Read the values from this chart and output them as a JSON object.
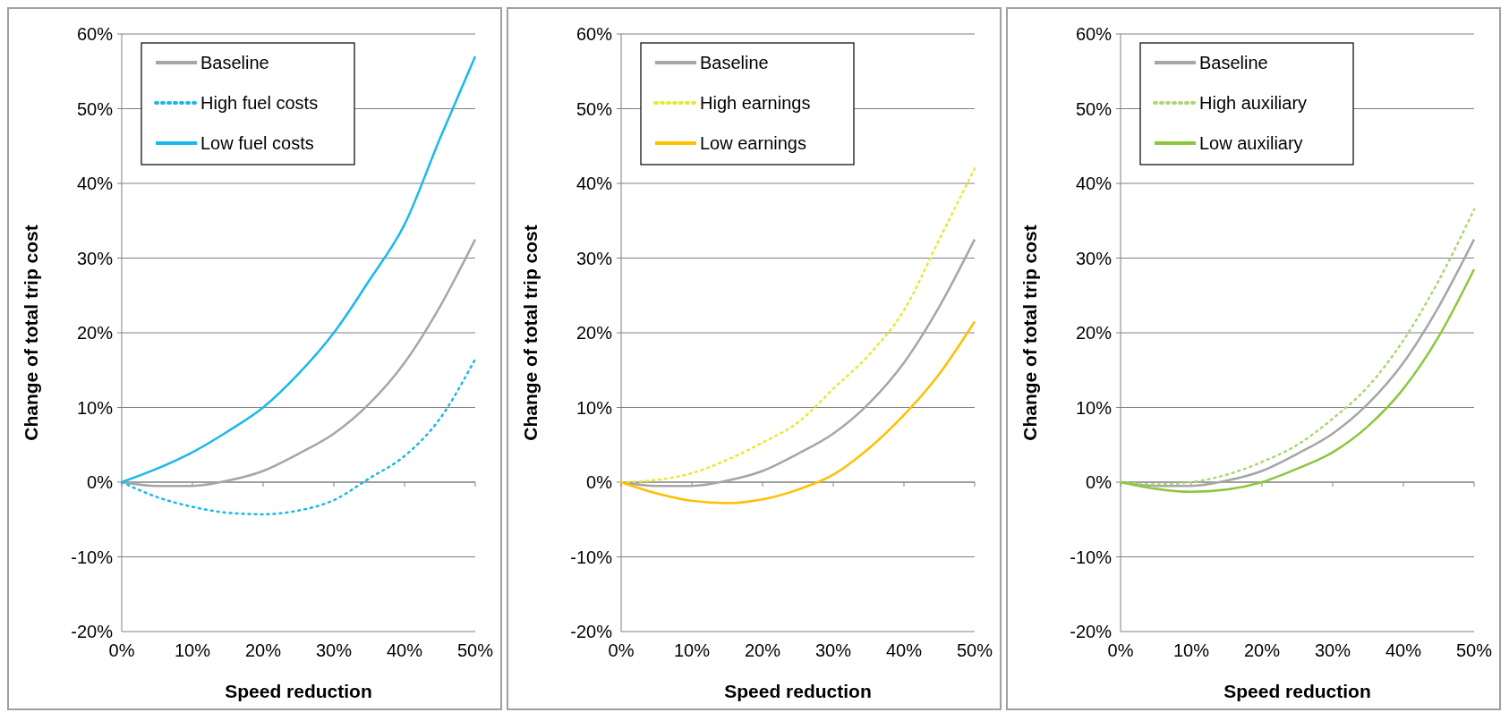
{
  "chart_data": [
    {
      "type": "line",
      "xlabel": "Speed reduction",
      "ylabel": "Change of total trip cost",
      "x": [
        0,
        5,
        10,
        15,
        20,
        25,
        30,
        35,
        40,
        45,
        50
      ],
      "xlim": [
        0,
        50
      ],
      "ylim": [
        -20,
        60
      ],
      "xticks": [
        {
          "value": 0,
          "label": "0%"
        },
        {
          "value": 10,
          "label": "10%"
        },
        {
          "value": 20,
          "label": "20%"
        },
        {
          "value": 30,
          "label": "30%"
        },
        {
          "value": 40,
          "label": "40%"
        },
        {
          "value": 50,
          "label": "50%"
        }
      ],
      "yticks": [
        {
          "value": -20,
          "label": "-20%"
        },
        {
          "value": -10,
          "label": "-10%"
        },
        {
          "value": 0,
          "label": "0%"
        },
        {
          "value": 10,
          "label": "10%"
        },
        {
          "value": 20,
          "label": "20%"
        },
        {
          "value": 30,
          "label": "30%"
        },
        {
          "value": 40,
          "label": "40%"
        },
        {
          "value": 50,
          "label": "50%"
        },
        {
          "value": 60,
          "label": "60%"
        }
      ],
      "grid": "y",
      "legend": "top left",
      "series": [
        {
          "name": "Baseline",
          "color": "#a6a6a6",
          "line_style": "solid",
          "values": [
            0,
            -0.5,
            -0.5,
            0.2,
            1.5,
            3.8,
            6.5,
            10.5,
            16,
            23.5,
            32.5
          ]
        },
        {
          "name": "High fuel costs",
          "color": "#1ab8ec",
          "line_style": "dotted",
          "values": [
            0,
            -2,
            -3.3,
            -4.1,
            -4.3,
            -3.8,
            -2.4,
            0.5,
            3.5,
            8.5,
            16.5
          ]
        },
        {
          "name": "Low fuel costs",
          "color": "#1ab8ec",
          "line_style": "solid",
          "values": [
            0,
            1.8,
            4,
            6.8,
            10,
            14.5,
            20,
            27,
            34.5,
            46,
            57
          ]
        }
      ]
    },
    {
      "type": "line",
      "xlabel": "Speed reduction",
      "ylabel": "Change of total trip cost",
      "x": [
        0,
        5,
        10,
        15,
        20,
        25,
        30,
        35,
        40,
        45,
        50
      ],
      "xlim": [
        0,
        50
      ],
      "ylim": [
        -20,
        60
      ],
      "xticks": [
        {
          "value": 0,
          "label": "0%"
        },
        {
          "value": 10,
          "label": "10%"
        },
        {
          "value": 20,
          "label": "20%"
        },
        {
          "value": 30,
          "label": "30%"
        },
        {
          "value": 40,
          "label": "40%"
        },
        {
          "value": 50,
          "label": "50%"
        }
      ],
      "yticks": [
        {
          "value": -20,
          "label": "-20%"
        },
        {
          "value": -10,
          "label": "-10%"
        },
        {
          "value": 0,
          "label": "0%"
        },
        {
          "value": 10,
          "label": "10%"
        },
        {
          "value": 20,
          "label": "20%"
        },
        {
          "value": 30,
          "label": "30%"
        },
        {
          "value": 40,
          "label": "40%"
        },
        {
          "value": 50,
          "label": "50%"
        },
        {
          "value": 60,
          "label": "60%"
        }
      ],
      "grid": "y",
      "legend": "top left",
      "series": [
        {
          "name": "Baseline",
          "color": "#a6a6a6",
          "line_style": "solid",
          "values": [
            0,
            -0.5,
            -0.5,
            0.2,
            1.5,
            3.8,
            6.5,
            10.5,
            16,
            23.5,
            32.5
          ]
        },
        {
          "name": "High earnings",
          "color": "#e8e830",
          "line_style": "dotted",
          "values": [
            0,
            0.3,
            1.2,
            3,
            5.3,
            8,
            12.5,
            17,
            23,
            32.5,
            42
          ]
        },
        {
          "name": "Low earnings",
          "color": "#ffc000",
          "line_style": "solid",
          "values": [
            0,
            -1.5,
            -2.5,
            -2.8,
            -2.3,
            -1,
            1,
            4.5,
            9,
            14.5,
            21.5
          ]
        }
      ]
    },
    {
      "type": "line",
      "xlabel": "Speed reduction",
      "ylabel": "Change of total trip cost",
      "x": [
        0,
        5,
        10,
        15,
        20,
        25,
        30,
        35,
        40,
        45,
        50
      ],
      "xlim": [
        0,
        50
      ],
      "ylim": [
        -20,
        60
      ],
      "xticks": [
        {
          "value": 0,
          "label": "0%"
        },
        {
          "value": 10,
          "label": "10%"
        },
        {
          "value": 20,
          "label": "20%"
        },
        {
          "value": 30,
          "label": "30%"
        },
        {
          "value": 40,
          "label": "40%"
        },
        {
          "value": 50,
          "label": "50%"
        }
      ],
      "yticks": [
        {
          "value": -20,
          "label": "-20%"
        },
        {
          "value": -10,
          "label": "-10%"
        },
        {
          "value": 0,
          "label": "0%"
        },
        {
          "value": 10,
          "label": "10%"
        },
        {
          "value": 20,
          "label": "20%"
        },
        {
          "value": 30,
          "label": "30%"
        },
        {
          "value": 40,
          "label": "40%"
        },
        {
          "value": 50,
          "label": "50%"
        },
        {
          "value": 60,
          "label": "60%"
        }
      ],
      "grid": "y",
      "legend": "top left",
      "series": [
        {
          "name": "Baseline",
          "color": "#a6a6a6",
          "line_style": "solid",
          "values": [
            0,
            -0.5,
            -0.5,
            0.2,
            1.5,
            3.8,
            6.5,
            10.5,
            16,
            23.5,
            32.5
          ]
        },
        {
          "name": "High auxiliary",
          "color": "#a8d870",
          "line_style": "dotted",
          "values": [
            0,
            -0.3,
            0,
            1,
            2.7,
            5,
            8.5,
            12.8,
            19,
            27,
            36.5
          ]
        },
        {
          "name": "Low auxiliary",
          "color": "#8cc63f",
          "line_style": "solid",
          "values": [
            0,
            -0.9,
            -1.3,
            -1,
            0,
            1.8,
            4,
            7.5,
            12.5,
            19.5,
            28.5
          ]
        }
      ]
    }
  ]
}
